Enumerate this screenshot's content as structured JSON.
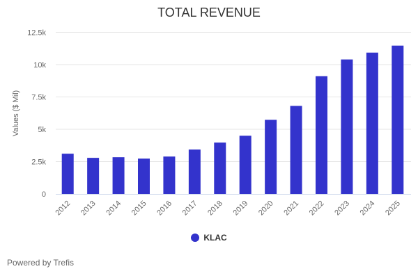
{
  "chart_data": {
    "type": "bar",
    "title": "TOTAL REVENUE",
    "xlabel": "",
    "ylabel": "Values ($ Mil)",
    "ylim": [
      0,
      12500
    ],
    "yticks": [
      0,
      2500,
      5000,
      7500,
      10000,
      12500
    ],
    "ytick_labels": [
      "0",
      "2.5k",
      "5k",
      "7.5k",
      "10k",
      "12.5k"
    ],
    "grid": true,
    "categories": [
      "2012",
      "2013",
      "2014",
      "2015",
      "2016",
      "2017",
      "2018",
      "2019",
      "2020",
      "2021",
      "2022",
      "2023",
      "2024",
      "2025"
    ],
    "series": [
      {
        "name": "KLAC",
        "color": "#3333cc",
        "values": [
          3110,
          2790,
          2840,
          2730,
          2890,
          3430,
          3970,
          4500,
          5730,
          6810,
          9110,
          10400,
          10930,
          11470
        ]
      }
    ],
    "legend": "bottom"
  },
  "footer": "Powered by Trefis"
}
